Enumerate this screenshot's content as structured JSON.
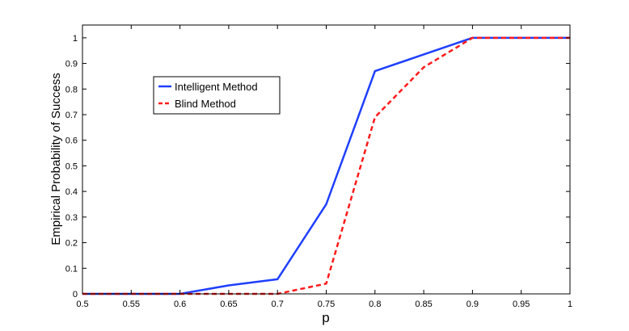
{
  "chart_data": {
    "type": "line",
    "title": "",
    "xlabel": "p",
    "ylabel": "Empirical Probability of Success",
    "xlim": [
      0.5,
      1
    ],
    "ylim": [
      0,
      1.05
    ],
    "x_ticks": [
      0.5,
      0.55,
      0.6,
      0.65,
      0.7,
      0.75,
      0.8,
      0.85,
      0.9,
      0.95,
      1
    ],
    "x_tick_labels": [
      "0.5",
      "0.55",
      "0.6",
      "0.65",
      "0.7",
      "0.75",
      "0.8",
      "0.85",
      "0.9",
      "0.95",
      "1"
    ],
    "y_ticks": [
      0,
      0.1,
      0.2,
      0.3,
      0.4,
      0.5,
      0.6,
      0.7,
      0.8,
      0.9,
      1
    ],
    "y_tick_labels": [
      "0",
      "0.1",
      "0.2",
      "0.3",
      "0.4",
      "0.5",
      "0.6",
      "0.7",
      "0.8",
      "0.9",
      "1"
    ],
    "grid": false,
    "legend_position": "upper-left",
    "series": [
      {
        "name": "Intelligent Method",
        "color": "#1f3fff",
        "style": "solid",
        "x": [
          0.5,
          0.55,
          0.6,
          0.65,
          0.7,
          0.75,
          0.8,
          0.85,
          0.9,
          0.95,
          1
        ],
        "y": [
          0,
          0,
          0,
          0.033,
          0.057,
          0.35,
          0.87,
          0.935,
          1,
          1,
          1
        ]
      },
      {
        "name": "Blind Method",
        "color": "#ff1a1a",
        "style": "dashed",
        "x": [
          0.5,
          0.55,
          0.6,
          0.65,
          0.7,
          0.75,
          0.8,
          0.85,
          0.9,
          0.95,
          1
        ],
        "y": [
          0,
          0,
          0,
          0,
          0,
          0.04,
          0.69,
          0.885,
          1,
          1,
          1
        ]
      }
    ]
  }
}
